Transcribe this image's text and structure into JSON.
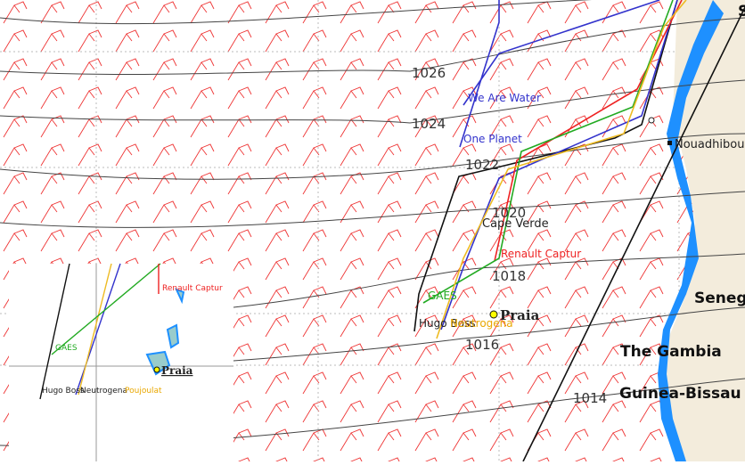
{
  "isobar_labels": [
    1026,
    1024,
    1022,
    1020,
    1018,
    1016,
    1014
  ],
  "places": {
    "north_cut": "S",
    "nouadhibou": "Nouadhibou",
    "cape_verde": "Cape Verde",
    "senegal": "Seneg",
    "gambia": "The Gambia",
    "guinea_bissau": "Guinea-Bissau",
    "praia": "Praia"
  },
  "boats": {
    "we_are_water": "We Are Water",
    "one_planet": "One Planet",
    "renault": "Renault Captur",
    "gaes": "GAES",
    "hugo_boss": "Hugo Boss",
    "neutrogena": "Neutrogena"
  },
  "inset": {
    "renault": "Renault Captur",
    "gaes": "GAES",
    "hugo_boss": "Hugo Boss",
    "neutrogena": "Neutrogena",
    "poujoulat": "Poujoulat",
    "praia": "Praia"
  }
}
